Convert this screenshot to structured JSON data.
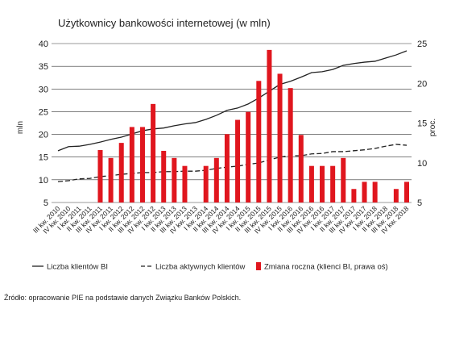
{
  "chart_data": {
    "type": "combo",
    "title": "Użytkownicy bankowości internetowej (w mln)",
    "y_label": "mln",
    "y2_label": "proc.",
    "source": "Źródło: opracowanie PIE na podstawie danych Związku Banków Polskich.",
    "categories": [
      "III kw. 2010",
      "IV kw. 2010",
      "I kw. 2011",
      "II kw. 2011",
      "III kw. 2011",
      "IV kw. 2011",
      "I kw. 2012",
      "II kw. 2012",
      "III kw. 2012",
      "IV kw. 2012",
      "I kw. 2013",
      "II kw. 2013",
      "III kw. 2013",
      "IV kw. 2013",
      "I kw. 2014",
      "II kw. 2014",
      "III kw. 2014",
      "IV kw. 2014",
      "I kw. 2015",
      "II kw. 2015",
      "III kw. 2015",
      "IV kw. 2015",
      "I kw. 2016",
      "II kw. 2016",
      "III kw. 2016",
      "IV kw. 2016",
      "I kw. 2017",
      "II kw. 2017",
      "III kw. 2017",
      "IV kw. 2017",
      "I kw. 2018",
      "II kw. 2018",
      "III kw. 2018",
      "IV kw. 2018"
    ],
    "series": [
      {
        "name": "Liczba klientów BI",
        "type": "line",
        "dash": false,
        "color": "#222222",
        "values": [
          16.4,
          17.3,
          17.4,
          17.8,
          18.3,
          18.9,
          19.4,
          20.1,
          20.8,
          21.2,
          21.4,
          21.9,
          22.3,
          22.6,
          23.3,
          24.2,
          25.3,
          25.8,
          26.7,
          28.0,
          29.5,
          31.0,
          31.7,
          32.6,
          33.6,
          33.8,
          34.3,
          35.2,
          35.6,
          35.9,
          36.1,
          36.8,
          37.5,
          38.4
        ]
      },
      {
        "name": "Liczba aktywnych klientów",
        "type": "line",
        "dash": true,
        "color": "#222222",
        "values": [
          9.6,
          9.8,
          10.2,
          10.3,
          10.7,
          10.9,
          11.2,
          11.4,
          11.6,
          11.6,
          11.8,
          11.8,
          11.9,
          11.9,
          12.1,
          12.5,
          12.8,
          13.0,
          13.4,
          13.7,
          14.4,
          15.0,
          15.3,
          15.3,
          15.7,
          15.8,
          16.2,
          16.2,
          16.4,
          16.6,
          16.9,
          17.4,
          17.8,
          17.6
        ]
      },
      {
        "name": "Zmiana roczna (klienci BI, prawa oś)",
        "type": "bar",
        "axis": "y2",
        "color": "#e0161e",
        "values": [
          null,
          null,
          null,
          null,
          11.6,
          10.6,
          12.5,
          14.5,
          14.5,
          17.4,
          11.5,
          10.6,
          9.6,
          null,
          9.6,
          10.6,
          13.6,
          15.4,
          16.4,
          20.3,
          24.2,
          21.2,
          19.4,
          13.5,
          9.6,
          9.6,
          9.6,
          10.6,
          6.7,
          7.6,
          7.6,
          null,
          6.7,
          7.6
        ]
      }
    ],
    "ylim": [
      5,
      40
    ],
    "yticks": [
      5,
      10,
      15,
      20,
      25,
      30,
      35,
      40
    ],
    "y2lim": [
      5,
      25
    ],
    "y2ticks": [
      5,
      10,
      15,
      20,
      25
    ],
    "grid": true
  }
}
